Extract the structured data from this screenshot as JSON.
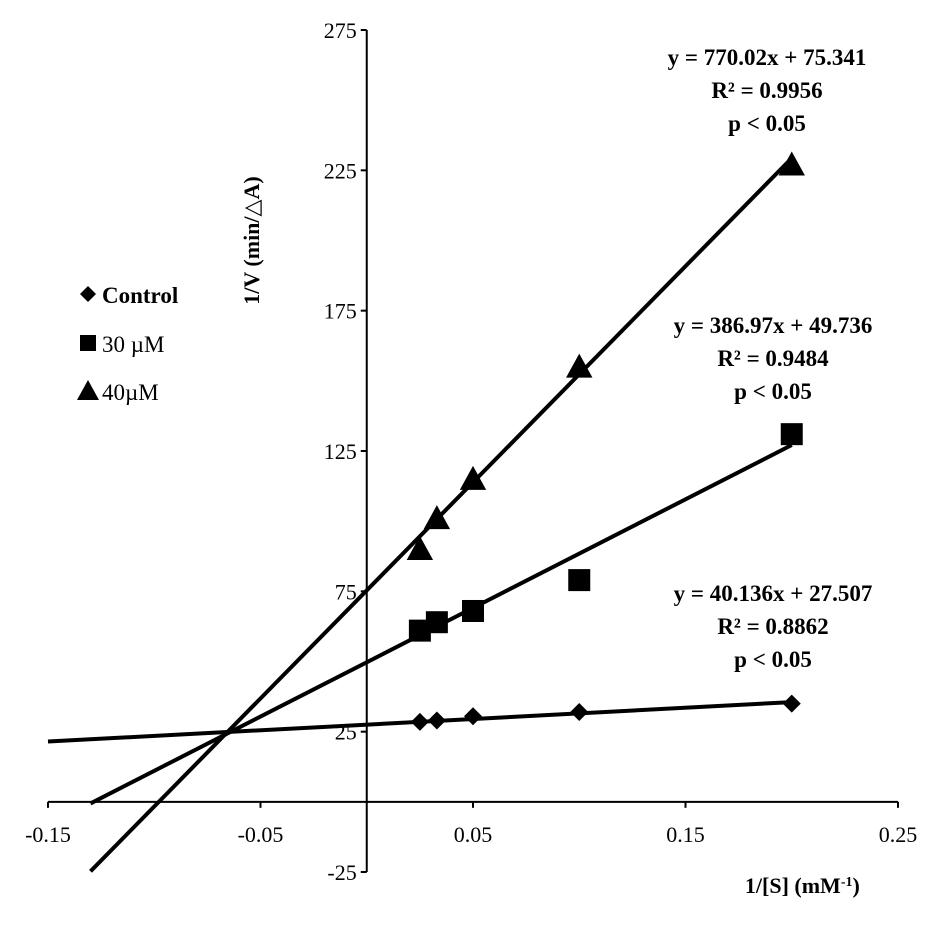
{
  "chart_data": {
    "type": "scatter",
    "xlabel": "1/[S] (mM",
    "xlabel_sup": "-1",
    "xlabel_end": ")",
    "ylabel": "1/V (min/△A)",
    "xlim": [
      -0.15,
      0.25
    ],
    "ylim": [
      -25,
      275
    ],
    "x_ticks": [
      -0.15,
      -0.05,
      0.05,
      0.15,
      0.25
    ],
    "x_tick_labels": [
      "-0.15",
      "-0.05",
      "0.05",
      "0.15",
      "0.25"
    ],
    "y_ticks": [
      -25,
      25,
      75,
      125,
      175,
      225,
      275
    ],
    "y_tick_labels": [
      "-25",
      "25",
      "75",
      "125",
      "175",
      "225",
      "275"
    ],
    "grid": false,
    "legend_position": "left",
    "colors": {
      "marks": "#000000",
      "background": "#ffffff"
    },
    "series": [
      {
        "name": "Control",
        "marker": "diamond",
        "legend_bold": true,
        "x": [
          0.025,
          0.033,
          0.05,
          0.1,
          0.2
        ],
        "y": [
          28.5,
          29,
          30.5,
          32,
          35
        ],
        "fit": {
          "slope": 40.136,
          "intercept": 27.507,
          "x_range": [
            -0.15,
            0.2
          ]
        },
        "annotation": [
          "y = 40.136x + 27.507",
          "R² = 0.8862",
          "p < 0.05"
        ]
      },
      {
        "name": "30 µM",
        "marker": "square",
        "legend_bold": false,
        "x": [
          0.025,
          0.033,
          0.05,
          0.1,
          0.2
        ],
        "y": [
          61,
          64,
          68,
          79,
          131
        ],
        "fit": {
          "slope": 386.97,
          "intercept": 49.736,
          "x_range": [
            -0.13,
            0.2
          ]
        },
        "annotation": [
          "y = 386.97x + 49.736",
          "R² = 0.9484",
          "p < 0.05"
        ]
      },
      {
        "name": "40µM",
        "marker": "triangle",
        "legend_bold": false,
        "x": [
          0.025,
          0.033,
          0.05,
          0.1,
          0.2
        ],
        "y": [
          90,
          101,
          115,
          155,
          227
        ],
        "fit": {
          "slope": 770.02,
          "intercept": 75.341,
          "x_range": [
            -0.13,
            0.2
          ]
        },
        "annotation": [
          "y = 770.02x + 75.341",
          "R² = 0.9956",
          "p < 0.05"
        ]
      }
    ]
  }
}
